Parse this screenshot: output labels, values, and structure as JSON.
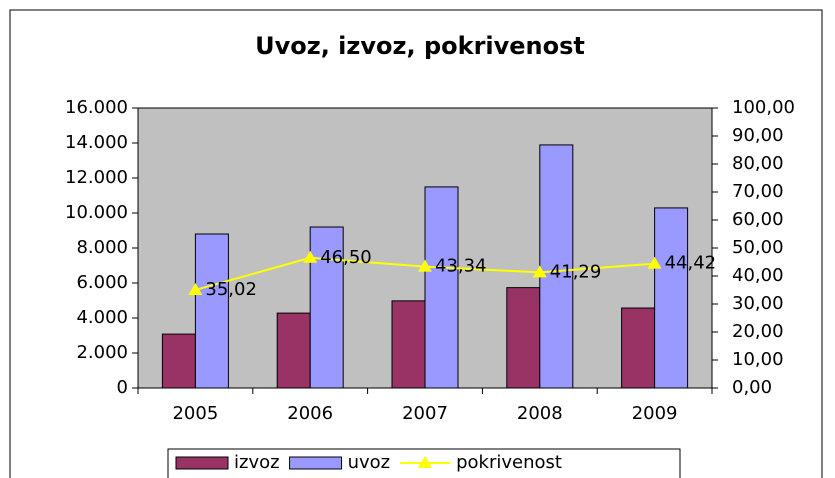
{
  "chart_data": {
    "type": "bar_line",
    "title": "Uvoz, izvoz, pokrivenost",
    "categories": [
      "2005",
      "2006",
      "2007",
      "2008",
      "2009"
    ],
    "series": [
      {
        "name": "izvoz",
        "color": "#993366",
        "values": [
          3080,
          4280,
          4980,
          5735,
          4570
        ]
      },
      {
        "name": "uvoz",
        "color": "#9999ff",
        "values": [
          8800,
          9200,
          11490,
          13890,
          10290
        ]
      },
      {
        "name": "pokrivenost",
        "color": "#ffff00",
        "axis": "y2",
        "type": "line",
        "values": [
          35.02,
          46.5,
          43.34,
          41.29,
          44.42
        ],
        "value_labels": [
          "35,02",
          "46,50",
          "43,34",
          "41,29",
          "44,42"
        ]
      }
    ],
    "ylim": [
      0,
      16000
    ],
    "yticks": [
      0,
      {
        "value": 2000,
        "label": "2.000"
      },
      {
        "value": 4000,
        "label": "4.000"
      },
      {
        "value": 6000,
        "label": "6.000"
      },
      {
        "value": 8000,
        "label": "8.000"
      },
      {
        "value": 10000,
        "label": "10.000"
      },
      {
        "value": 12000,
        "label": "12.000"
      },
      {
        "value": 14000,
        "label": "14.000"
      },
      {
        "value": 16000,
        "label": "16.000"
      }
    ],
    "y2lim": [
      0,
      100
    ],
    "y2ticks": [
      {
        "value": 0,
        "label": "0,00"
      },
      {
        "value": 10,
        "label": "10,00"
      },
      {
        "value": 20,
        "label": "20,00"
      },
      {
        "value": 30,
        "label": "30,00"
      },
      {
        "value": 40,
        "label": "40,00"
      },
      {
        "value": 50,
        "label": "50,00"
      },
      {
        "value": 60,
        "label": "60,00"
      },
      {
        "value": 70,
        "label": "70,00"
      },
      {
        "value": 80,
        "label": "80,00"
      },
      {
        "value": 90,
        "label": "90,00"
      },
      {
        "value": 100,
        "label": "100,00"
      }
    ],
    "plot_background": "#c0c0c0",
    "legend": "bottom"
  }
}
